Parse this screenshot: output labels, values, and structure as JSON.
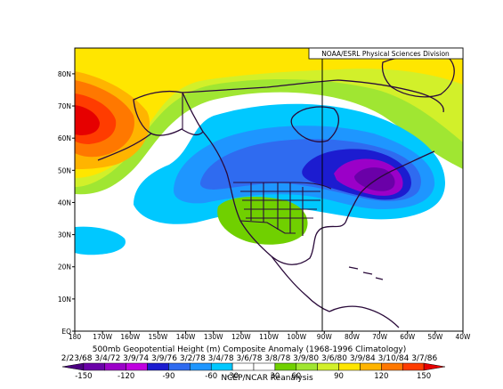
{
  "credit": "NOAA/ESRL Physical Sciences Division",
  "caption_title": "500mb Geopotential Height (m) Composite Anomaly (1968-1996 Climatology)",
  "caption_dates": "2/23/68 3/4/72 3/9/74 3/9/76 3/2/78 3/4/78 3/6/78 3/8/78 3/9/80 3/6/80 3/9/84 3/10/84 3/7/86",
  "source": "NCEP/NCAR Reanalysis",
  "map": {
    "projection": "lat-lon",
    "lon_labels": [
      "180",
      "170W",
      "160W",
      "150W",
      "140W",
      "130W",
      "120W",
      "110W",
      "100W",
      "90W",
      "80W",
      "70W",
      "60W",
      "50W",
      "40W"
    ],
    "lat_labels": [
      "EQ",
      "10N",
      "20N",
      "30N",
      "40N",
      "50N",
      "60N",
      "70N",
      "80N"
    ],
    "lon_range": [
      -180,
      -40
    ],
    "lat_range": [
      0,
      88
    ]
  },
  "colorbar": {
    "ticks": [
      "-150",
      "-120",
      "-90",
      "-60",
      "-30",
      "30",
      "60",
      "90",
      "120",
      "150"
    ],
    "colors": [
      "#4b0080",
      "#6a00a8",
      "#9b00c8",
      "#c000e0",
      "#1c1cd0",
      "#2f6bf0",
      "#1e96ff",
      "#00c8ff",
      "#ffffff",
      "#ffffff",
      "#70d000",
      "#a0e632",
      "#d2f02a",
      "#ffe600",
      "#ffb400",
      "#ff7800",
      "#ff3c00",
      "#e60000"
    ]
  }
}
